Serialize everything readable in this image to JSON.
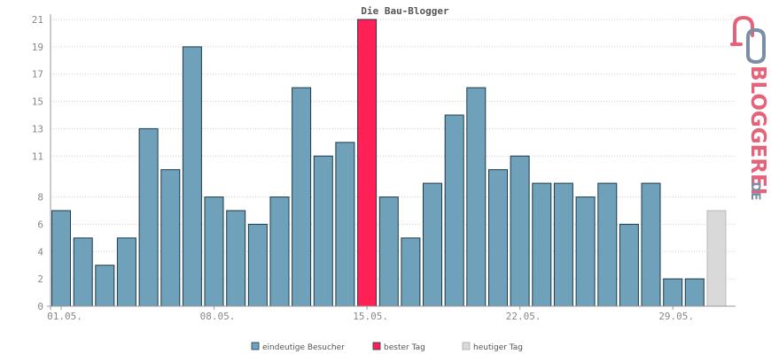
{
  "chart_data": {
    "type": "bar",
    "title": "Die Bau-Blogger",
    "xlabel": "",
    "ylabel": "",
    "ylim": [
      0,
      21
    ],
    "y_ticks": [
      0,
      2,
      4,
      6,
      8,
      11,
      13,
      15,
      17,
      19,
      21
    ],
    "x_tick_labels": [
      {
        "label": "01.05.",
        "index": 0
      },
      {
        "label": "08.05.",
        "index": 7
      },
      {
        "label": "15.05.",
        "index": 14
      },
      {
        "label": "22.05.",
        "index": 21
      },
      {
        "label": "29.05.",
        "index": 28
      }
    ],
    "categories": [
      "01.05.",
      "02.05.",
      "03.05.",
      "04.05.",
      "05.05.",
      "06.05.",
      "07.05.",
      "08.05.",
      "09.05.",
      "10.05.",
      "11.05.",
      "12.05.",
      "13.05.",
      "14.05.",
      "15.05.",
      "16.05.",
      "17.05.",
      "18.05.",
      "19.05.",
      "20.05.",
      "21.05.",
      "22.05.",
      "23.05.",
      "24.05.",
      "25.05.",
      "26.05.",
      "27.05.",
      "28.05.",
      "29.05.",
      "30.05.",
      "31.05."
    ],
    "values": [
      7,
      5,
      3,
      5,
      13,
      10,
      19,
      8,
      7,
      6,
      8,
      16,
      11,
      12,
      21,
      8,
      5,
      9,
      14,
      16,
      10,
      11,
      9,
      9,
      8,
      9,
      6,
      9,
      2,
      2,
      7
    ],
    "bar_kinds": [
      "v",
      "v",
      "v",
      "v",
      "v",
      "v",
      "v",
      "v",
      "v",
      "v",
      "v",
      "v",
      "v",
      "v",
      "best",
      "v",
      "v",
      "v",
      "v",
      "v",
      "v",
      "v",
      "v",
      "v",
      "v",
      "v",
      "v",
      "v",
      "v",
      "v",
      "today"
    ],
    "grid": true,
    "legend_position": "bottom",
    "legend": [
      {
        "key": "v",
        "label": "eindeutige Besucher"
      },
      {
        "key": "best",
        "label": "bester Tag"
      },
      {
        "key": "today",
        "label": "heutiger Tag"
      }
    ],
    "colors": {
      "v": "#6fa1bb",
      "best": "#ff2056",
      "today": "#d9d9d9",
      "bar_stroke": "#1f3a48",
      "grid": "#cccccc",
      "axis": "#999999"
    }
  },
  "logo": {
    "text": "BLOGGEREI",
    "suffix": ".DE",
    "colors": {
      "primary": "#e5637a",
      "secondary": "#7a8fa6"
    }
  }
}
